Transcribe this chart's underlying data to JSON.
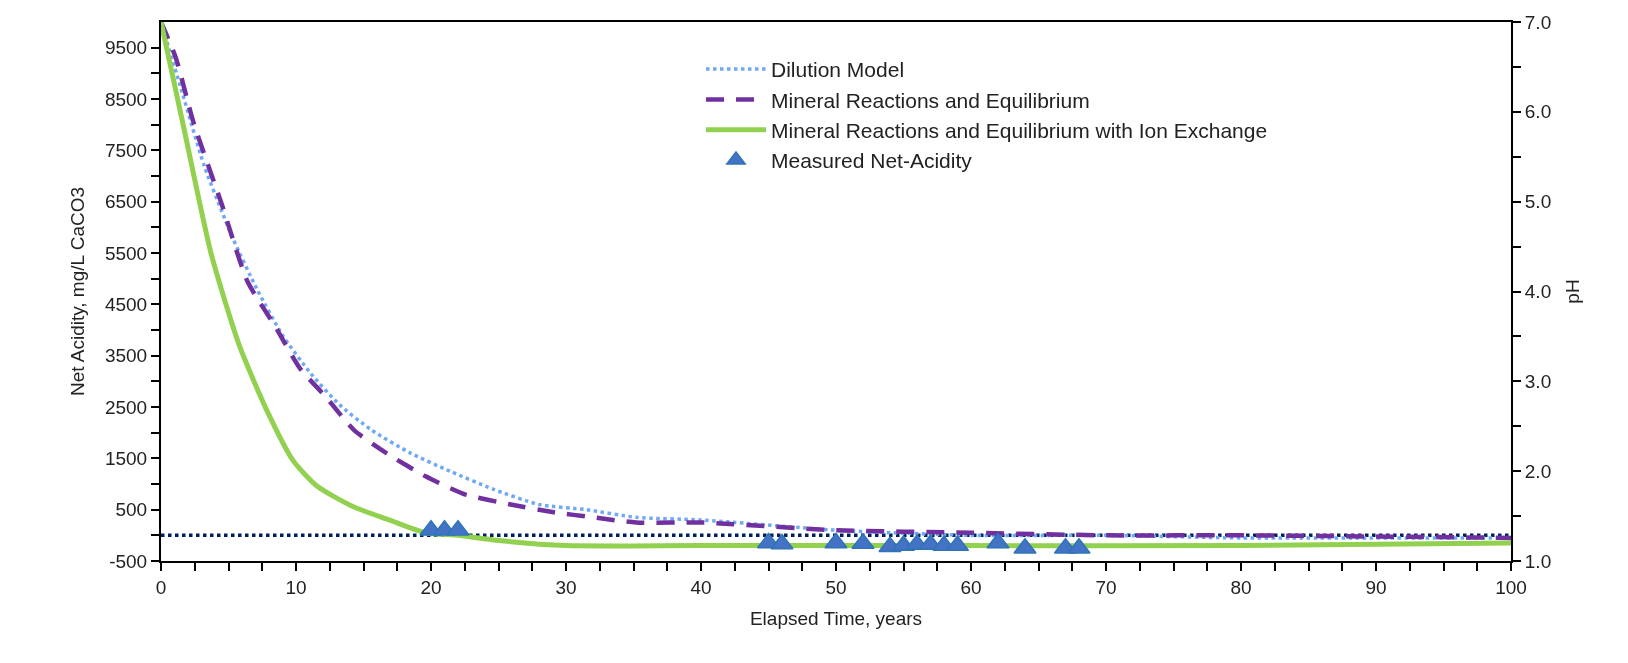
{
  "chart_data": {
    "type": "line",
    "xlabel": "Elapsed Time, years",
    "ylabel": "Net Acidity, mg/L CaCO3",
    "y2label": "pH",
    "xlim": [
      0,
      100
    ],
    "xticks": [
      0,
      {
        "value": 2.5,
        "label": null
      },
      {
        "value": 5,
        "label": null
      },
      {
        "value": 7.5,
        "label": null
      },
      10,
      {
        "value": 12.5,
        "label": null
      },
      {
        "value": 15,
        "label": null
      },
      {
        "value": 17.5,
        "label": null
      },
      20,
      {
        "value": 22.5,
        "label": null
      },
      {
        "value": 25,
        "label": null
      },
      {
        "value": 27.5,
        "label": null
      },
      30,
      {
        "value": 32.5,
        "label": null
      },
      {
        "value": 35,
        "label": null
      },
      {
        "value": 37.5,
        "label": null
      },
      40,
      {
        "value": 42.5,
        "label": null
      },
      {
        "value": 45,
        "label": null
      },
      {
        "value": 47.5,
        "label": null
      },
      50,
      {
        "value": 52.5,
        "label": null
      },
      {
        "value": 55,
        "label": null
      },
      {
        "value": 57.5,
        "label": null
      },
      60,
      {
        "value": 62.5,
        "label": null
      },
      {
        "value": 65,
        "label": null
      },
      {
        "value": 67.5,
        "label": null
      },
      70,
      {
        "value": 72.5,
        "label": null
      },
      {
        "value": 75,
        "label": null
      },
      {
        "value": 77.5,
        "label": null
      },
      80,
      {
        "value": 82.5,
        "label": null
      },
      {
        "value": 85,
        "label": null
      },
      {
        "value": 87.5,
        "label": null
      },
      90,
      {
        "value": 92.5,
        "label": null
      },
      {
        "value": 95,
        "label": null
      },
      {
        "value": 97.5,
        "label": null
      },
      100
    ],
    "ylim": [
      -500,
      10000
    ],
    "yticks": [
      -500,
      {
        "value": 0,
        "label": null
      },
      500,
      {
        "value": 1000,
        "label": null
      },
      1500,
      {
        "value": 2000,
        "label": null
      },
      2500,
      {
        "value": 3000,
        "label": null
      },
      3500,
      {
        "value": 4000,
        "label": null
      },
      4500,
      {
        "value": 5000,
        "label": null
      },
      5500,
      {
        "value": 6000,
        "label": null
      },
      6500,
      {
        "value": 7000,
        "label": null
      },
      7500,
      {
        "value": 8000,
        "label": null
      },
      8500,
      {
        "value": 9000,
        "label": null
      },
      9500
    ],
    "y2lim": [
      1,
      7
    ],
    "y2ticks": [
      {
        "value": 1,
        "label": "1.0"
      },
      {
        "value": 1.5,
        "label": null
      },
      {
        "value": 2,
        "label": "2.0"
      },
      {
        "value": 2.5,
        "label": null
      },
      {
        "value": 3,
        "label": "3.0"
      },
      {
        "value": 3.5,
        "label": null
      },
      {
        "value": 4,
        "label": "4.0"
      },
      {
        "value": 4.5,
        "label": null
      },
      {
        "value": 5,
        "label": "5.0"
      },
      {
        "value": 5.5,
        "label": null
      },
      {
        "value": 6,
        "label": "6.0"
      },
      {
        "value": 6.5,
        "label": null
      },
      {
        "value": 7,
        "label": "7.0"
      }
    ],
    "grid": false,
    "legend": "top",
    "ref_lines": [
      {
        "axis": "y",
        "value": 0,
        "color": "#002060",
        "line_style": "dotted"
      }
    ],
    "series": [
      {
        "name": "Measured Net-Acidity",
        "type": "scatter",
        "marker": "triangle",
        "color": "#4472c4",
        "x": [
          20,
          21,
          22,
          45,
          46,
          50,
          52,
          54,
          55,
          56,
          57,
          58,
          59,
          62,
          64,
          67,
          68
        ],
        "values": [
          100,
          100,
          100,
          -150,
          -170,
          -150,
          -160,
          -220,
          -200,
          -180,
          -180,
          -200,
          -200,
          -150,
          -250,
          -250,
          -250
        ]
      },
      {
        "name": "Dilution Model",
        "line_style": "dotted",
        "color": "#6fa8f5",
        "x": [
          0,
          1.6,
          3.2,
          5.3,
          7.1,
          9,
          11.1,
          13.2,
          15.6,
          18.5,
          21.4,
          24.6,
          28,
          31.5,
          35.2,
          40,
          50,
          60,
          70,
          80,
          100
        ],
        "values": [
          10000,
          8600,
          7200,
          5800,
          4800,
          3900,
          3150,
          2550,
          2050,
          1600,
          1250,
          900,
          600,
          500,
          350,
          300,
          100,
          0,
          0,
          -50,
          -50
        ]
      },
      {
        "name": "Mineral Reactions and Equilibrium",
        "line_style": "dashed",
        "color": "#7030a0",
        "x": [
          0,
          1.1,
          2.4,
          4.5,
          6.4,
          8.5,
          10.3,
          12.2,
          14.3,
          16.7,
          19.6,
          22.5,
          25.9,
          29.1,
          32,
          35.2,
          40,
          50,
          60,
          70,
          80,
          100
        ],
        "values": [
          10000,
          9300,
          8050,
          6450,
          4950,
          4050,
          3250,
          2700,
          2050,
          1600,
          1150,
          800,
          600,
          450,
          350,
          250,
          250,
          100,
          50,
          0,
          0,
          -50
        ]
      },
      {
        "name": "Mineral Reactions and Equilibrium with Ion Exchange",
        "line_style": "solid",
        "color": "#92d050",
        "x": [
          0,
          1.6,
          3.7,
          5.8,
          7.9,
          9.8,
          11.6,
          14.3,
          16.9,
          19.6,
          22,
          25,
          30,
          40,
          60,
          80,
          100
        ],
        "values": [
          10000,
          8050,
          5500,
          3700,
          2400,
          1450,
          950,
          550,
          300,
          50,
          0,
          -100,
          -200,
          -200,
          -200,
          -200,
          -150
        ]
      }
    ]
  }
}
